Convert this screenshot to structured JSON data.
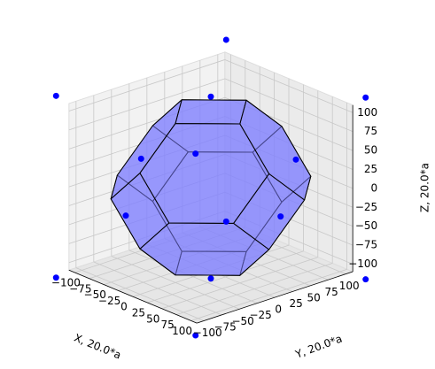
{
  "chart_data": {
    "type": "scatter3d",
    "xlabel": "X, 20.0*a",
    "ylabel": "Y, 20.0*a",
    "zlabel": "Z, 20.0*a",
    "xlim": [
      -110,
      110
    ],
    "ylim": [
      -110,
      110
    ],
    "zlim": [
      -110,
      110
    ],
    "xticks": [
      {
        "value": -100,
        "label": "−100"
      },
      {
        "value": -75,
        "label": "−75"
      },
      {
        "value": -50,
        "label": "−50"
      },
      {
        "value": -25,
        "label": "−25"
      },
      0,
      25,
      50,
      75,
      100
    ],
    "yticks": [
      {
        "value": -100,
        "label": "−100"
      },
      {
        "value": -75,
        "label": "−75"
      },
      {
        "value": -50,
        "label": "−50"
      },
      {
        "value": -25,
        "label": "−25"
      },
      0,
      25,
      50,
      75,
      100
    ],
    "zticks": [
      {
        "value": -100,
        "label": "−100"
      },
      {
        "value": -75,
        "label": "−75"
      },
      {
        "value": -50,
        "label": "−50"
      },
      {
        "value": -25,
        "label": "−25"
      },
      0,
      25,
      50,
      75,
      100
    ],
    "grid": true,
    "points": {
      "color": "#0000ff",
      "x": [
        -120,
        -120,
        -120,
        -120,
        120,
        120,
        120,
        120,
        -120,
        120,
        0,
        0,
        0,
        0
      ],
      "y": [
        -120,
        -120,
        120,
        120,
        -120,
        -120,
        120,
        120,
        0,
        0,
        -120,
        120,
        0,
        0
      ],
      "z": [
        -120,
        120,
        -120,
        120,
        -120,
        120,
        -120,
        120,
        0,
        0,
        0,
        0,
        -120,
        120
      ]
    },
    "polyhedron": {
      "kind": "truncated-octahedron",
      "extent": 100,
      "color": "#7f7fff"
    }
  }
}
